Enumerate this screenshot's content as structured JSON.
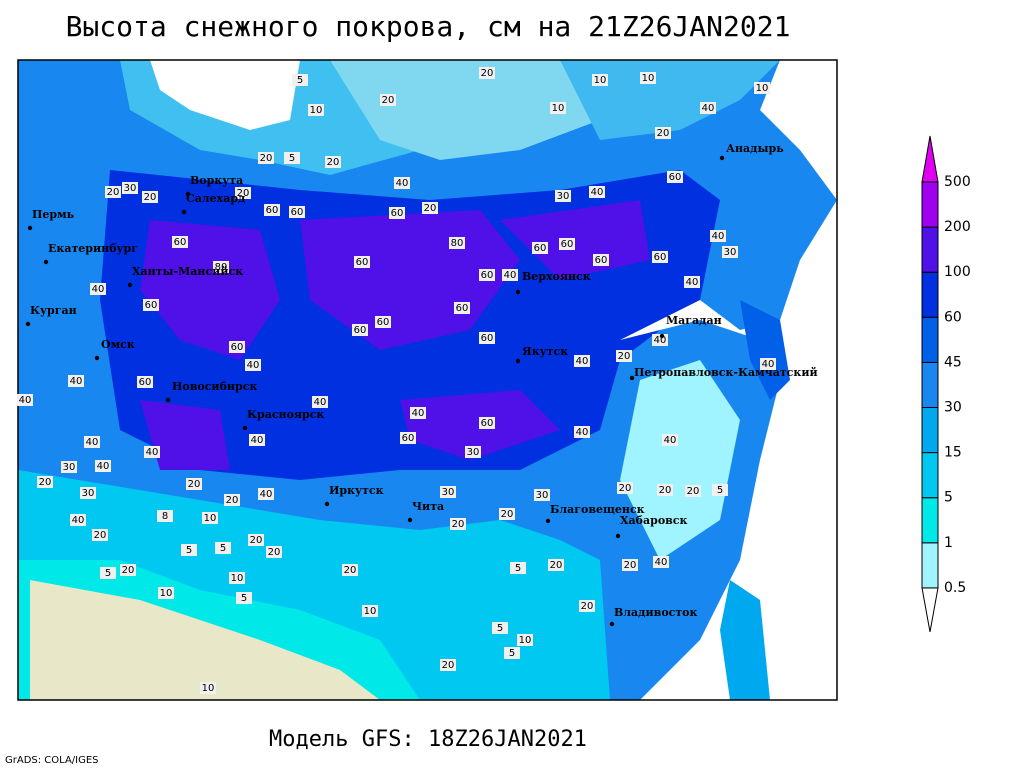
{
  "header": {
    "title": "Высота снежного покрова, см на 21Z26JAN2021"
  },
  "footer": {
    "model": "Модель GFS: 18Z26JAN2021",
    "credit": "GrADS: COLA/IGES"
  },
  "colorbar": {
    "levels": [
      0.5,
      1,
      5,
      15,
      30,
      45,
      60,
      100,
      200,
      500
    ],
    "colors": [
      "#ffffff",
      "#a0f4ff",
      "#00e8e8",
      "#00c8f0",
      "#00a8f0",
      "#1888f0",
      "#0060e8",
      "#0030e0",
      "#5010e8",
      "#a000f0",
      "#e000f0"
    ]
  },
  "cities": [
    "Анадырь",
    "Верхоянск",
    "Магадан",
    "Якутск",
    "Петропавловск-Камчатский",
    "Благовещенск",
    "Хабаровск",
    "Владивосток",
    "Чита",
    "Иркутск",
    "Красноярск",
    "Новосибирск",
    "Омск",
    "Курган",
    "Екатеринбург",
    "Пермь",
    "Ханты-Мансийск",
    "Салехард",
    "Воркута"
  ],
  "contour_labels": [
    5,
    20,
    10,
    10,
    10,
    10,
    20,
    10,
    40,
    20,
    5,
    20,
    20,
    40,
    30,
    20,
    20,
    20,
    60,
    60,
    60,
    20,
    30,
    40,
    60,
    40,
    30,
    60,
    80,
    60,
    60,
    80,
    60,
    60,
    40,
    60,
    60,
    40,
    40,
    60,
    60,
    60,
    60,
    60,
    60,
    40,
    60,
    40,
    40,
    20,
    40,
    40,
    40,
    40,
    40,
    60,
    60,
    40,
    40,
    40,
    40,
    40,
    30,
    40,
    30,
    20,
    20,
    40,
    20,
    30,
    30,
    30,
    20,
    20,
    20,
    5,
    20,
    20,
    10,
    8,
    40,
    20,
    20,
    5,
    20,
    5,
    20,
    5,
    20,
    5,
    20,
    20,
    40,
    10,
    10,
    5,
    20,
    10,
    5,
    10,
    5,
    20,
    10
  ]
}
